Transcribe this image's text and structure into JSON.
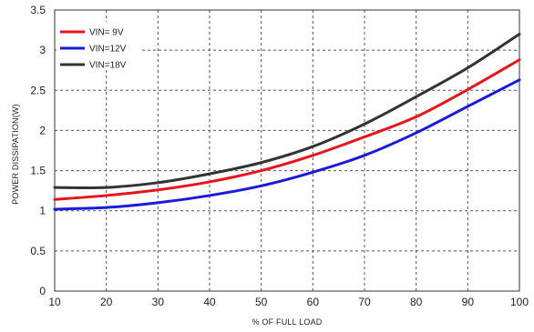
{
  "chart_data": {
    "type": "line",
    "title": "",
    "xlabel": "% OF FULL LOAD",
    "ylabel": "POWER DISSIPATION(W)",
    "xlim": [
      10,
      100
    ],
    "ylim": [
      0,
      3.5
    ],
    "xticks": [
      "10",
      "20",
      "30",
      "40",
      "50",
      "60",
      "70",
      "80",
      "90",
      "100"
    ],
    "yticks": [
      "0",
      "0.5",
      "1",
      "1.5",
      "2",
      "2.5",
      "3",
      "3.5"
    ],
    "grid": true,
    "legend_position": "top-left",
    "x": [
      10,
      20,
      30,
      40,
      50,
      60,
      70,
      80,
      90,
      100
    ],
    "series": [
      {
        "name": "VIN= 9V",
        "color": "#e8141c",
        "values": [
          1.14,
          1.19,
          1.26,
          1.36,
          1.5,
          1.69,
          1.92,
          2.17,
          2.51,
          2.88
        ]
      },
      {
        "name": "VIN=12V",
        "color": "#1a1adc",
        "values": [
          1.02,
          1.04,
          1.1,
          1.19,
          1.31,
          1.48,
          1.69,
          1.97,
          2.3,
          2.63
        ]
      },
      {
        "name": "VIN=18V",
        "color": "#333333",
        "values": [
          1.29,
          1.29,
          1.35,
          1.46,
          1.6,
          1.8,
          2.08,
          2.42,
          2.78,
          3.2
        ]
      }
    ]
  }
}
